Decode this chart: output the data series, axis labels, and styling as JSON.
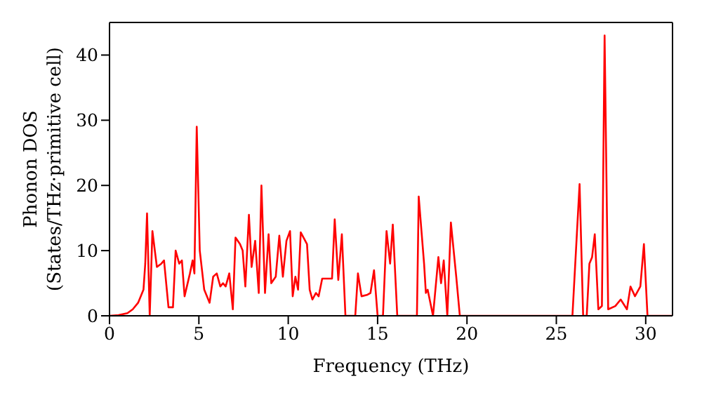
{
  "chart_data": {
    "type": "line",
    "xlabel": "Frequency (THz)",
    "ylabel": "Phonon DOS\n(States/THz·primitive cell)",
    "xlim": [
      0,
      31.5
    ],
    "xticks": [
      0,
      5,
      10,
      15,
      20,
      25,
      30
    ],
    "ylim": [
      0,
      45
    ],
    "yticks": [
      0,
      10,
      20,
      30,
      40
    ],
    "marker": "none",
    "line_style": "solid",
    "series": [
      {
        "color": "#ff0000",
        "x": [
          0,
          0.5,
          1,
          1.3,
          1.6,
          1.9,
          2.0,
          2.1,
          2.25,
          2.4,
          2.65,
          2.9,
          3.05,
          3.3,
          3.55,
          3.7,
          3.9,
          4.05,
          4.2,
          4.5,
          4.65,
          4.75,
          4.88,
          5.05,
          5.3,
          5.6,
          5.8,
          6.0,
          6.2,
          6.35,
          6.5,
          6.7,
          6.9,
          7.05,
          7.3,
          7.45,
          7.6,
          7.8,
          7.95,
          8.15,
          8.35,
          8.5,
          8.7,
          8.9,
          9.05,
          9.3,
          9.5,
          9.7,
          9.9,
          10.1,
          10.25,
          10.4,
          10.55,
          10.7,
          11.05,
          11.2,
          11.35,
          11.55,
          11.7,
          11.9,
          12.45,
          12.6,
          12.8,
          13.0,
          13.2,
          13.75,
          13.9,
          14.1,
          14.4,
          14.6,
          14.8,
          15.0,
          15.3,
          15.5,
          15.7,
          15.85,
          16.1,
          17.2,
          17.3,
          17.6,
          17.7,
          17.8,
          18.1,
          18.4,
          18.55,
          18.7,
          18.9,
          19.1,
          19.4,
          19.6,
          25.9,
          26.3,
          26.5,
          26.7,
          26.85,
          27.0,
          27.15,
          27.35,
          27.55,
          27.7,
          27.9,
          28.3,
          28.6,
          28.95,
          29.15,
          29.4,
          29.7,
          29.9,
          30.1,
          31.5
        ],
        "values": [
          0,
          0.1,
          0.4,
          1,
          2,
          4,
          8,
          15.7,
          0,
          13,
          7.5,
          8,
          8.5,
          1.3,
          1.3,
          10,
          8,
          8.5,
          3,
          6.5,
          8.5,
          6.5,
          29,
          10,
          4,
          2,
          6,
          6.5,
          4.5,
          5,
          4.5,
          6.5,
          1,
          12,
          11,
          10,
          4.5,
          15.5,
          7.5,
          11.5,
          3.5,
          20,
          3.5,
          12.5,
          5,
          6,
          12.3,
          6,
          11.5,
          13,
          3,
          6,
          4,
          12.8,
          11,
          4,
          2.5,
          3.5,
          3,
          5.7,
          5.7,
          14.8,
          5.5,
          12.5,
          0,
          0,
          6.5,
          3,
          3.2,
          3.5,
          7,
          0,
          0,
          13,
          8,
          14,
          0,
          0,
          18.3,
          8,
          3.5,
          4,
          0,
          9,
          5,
          8.5,
          0,
          14.3,
          6,
          0,
          0,
          20.2,
          0,
          0,
          8,
          9,
          12.5,
          1,
          1.5,
          43,
          1,
          1.5,
          2.5,
          1,
          4.5,
          3,
          4.5,
          11,
          0,
          0
        ]
      }
    ]
  }
}
